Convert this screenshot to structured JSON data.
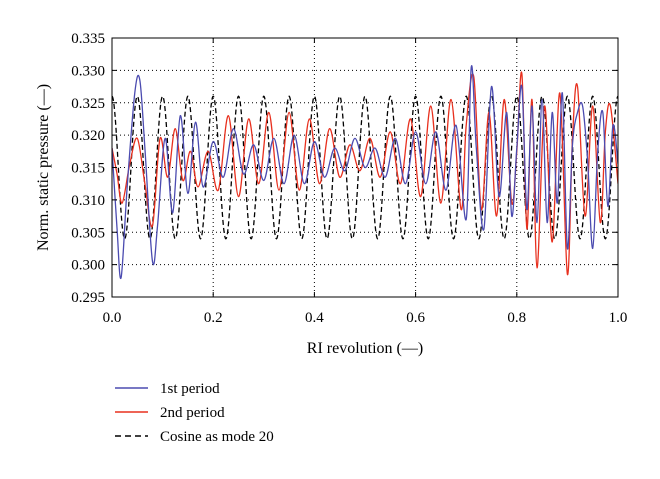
{
  "chart_data": {
    "type": "line",
    "title": "",
    "xlabel": "RI revolution (—)",
    "ylabel": "Norm. static pressure (—)",
    "xlim": [
      0.0,
      1.0
    ],
    "ylim": [
      0.295,
      0.335
    ],
    "xticks": [
      0.0,
      0.2,
      0.4,
      0.6,
      0.8,
      1.0
    ],
    "xtick_labels": [
      "0.0",
      "0.2",
      "0.4",
      "0.6",
      "0.8",
      "1.0"
    ],
    "yticks": [
      0.295,
      0.3,
      0.305,
      0.31,
      0.315,
      0.32,
      0.325,
      0.33,
      0.335
    ],
    "ytick_labels": [
      "0.295",
      "0.300",
      "0.305",
      "0.310",
      "0.315",
      "0.320",
      "0.325",
      "0.330",
      "0.335"
    ],
    "grid": true,
    "grid_style": "dotted",
    "legend_position": "below",
    "series": [
      {
        "name": "1st period",
        "color": "#4b4bb0",
        "style": "solid",
        "x": [
          0.0,
          0.01,
          0.018,
          0.03,
          0.045,
          0.055,
          0.065,
          0.08,
          0.09,
          0.105,
          0.12,
          0.135,
          0.15,
          0.165,
          0.18,
          0.2,
          0.22,
          0.24,
          0.26,
          0.28,
          0.3,
          0.32,
          0.34,
          0.36,
          0.38,
          0.4,
          0.42,
          0.44,
          0.46,
          0.48,
          0.5,
          0.52,
          0.54,
          0.56,
          0.58,
          0.6,
          0.62,
          0.64,
          0.66,
          0.68,
          0.7,
          0.71,
          0.72,
          0.735,
          0.75,
          0.765,
          0.78,
          0.79,
          0.8,
          0.81,
          0.82,
          0.83,
          0.84,
          0.85,
          0.86,
          0.87,
          0.88,
          0.89,
          0.9,
          0.91,
          0.92,
          0.93,
          0.94,
          0.95,
          0.96,
          0.97,
          0.98,
          0.99,
          1.0
        ],
        "y": [
          0.318,
          0.3055,
          0.298,
          0.312,
          0.3265,
          0.3285,
          0.318,
          0.3005,
          0.306,
          0.3195,
          0.308,
          0.323,
          0.311,
          0.322,
          0.312,
          0.319,
          0.3135,
          0.321,
          0.314,
          0.3185,
          0.313,
          0.3195,
          0.3125,
          0.32,
          0.3125,
          0.319,
          0.3135,
          0.318,
          0.3145,
          0.3195,
          0.315,
          0.318,
          0.3135,
          0.3195,
          0.3125,
          0.3205,
          0.3125,
          0.3205,
          0.3115,
          0.3215,
          0.307,
          0.3305,
          0.318,
          0.3055,
          0.3275,
          0.3105,
          0.3235,
          0.3075,
          0.318,
          0.3275,
          0.3085,
          0.3245,
          0.3065,
          0.3255,
          0.3065,
          0.3235,
          0.3095,
          0.3265,
          0.3025,
          0.3185,
          0.3235,
          0.3245,
          0.316,
          0.3025,
          0.3175,
          0.3235,
          0.309,
          0.3215,
          0.3155
        ]
      },
      {
        "name": "2nd period",
        "color": "#e8301e",
        "style": "solid",
        "x": [
          0.0,
          0.01,
          0.02,
          0.035,
          0.05,
          0.065,
          0.08,
          0.095,
          0.11,
          0.125,
          0.14,
          0.155,
          0.17,
          0.19,
          0.21,
          0.23,
          0.25,
          0.27,
          0.29,
          0.31,
          0.33,
          0.35,
          0.37,
          0.39,
          0.41,
          0.43,
          0.45,
          0.47,
          0.49,
          0.51,
          0.53,
          0.55,
          0.57,
          0.59,
          0.61,
          0.63,
          0.65,
          0.67,
          0.69,
          0.7,
          0.715,
          0.73,
          0.745,
          0.76,
          0.775,
          0.79,
          0.8,
          0.81,
          0.82,
          0.83,
          0.84,
          0.855,
          0.87,
          0.885,
          0.9,
          0.91,
          0.92,
          0.935,
          0.95,
          0.965,
          0.975,
          0.985,
          1.0
        ],
        "y": [
          0.318,
          0.314,
          0.3095,
          0.3155,
          0.3195,
          0.3125,
          0.306,
          0.3195,
          0.3135,
          0.321,
          0.313,
          0.3175,
          0.312,
          0.3175,
          0.3115,
          0.323,
          0.3105,
          0.3225,
          0.3125,
          0.3235,
          0.3115,
          0.3235,
          0.3115,
          0.3225,
          0.3125,
          0.321,
          0.3135,
          0.3185,
          0.3145,
          0.3195,
          0.3135,
          0.3205,
          0.3125,
          0.3225,
          0.3105,
          0.3245,
          0.3095,
          0.3255,
          0.3085,
          0.3215,
          0.329,
          0.3085,
          0.3235,
          0.3075,
          0.3255,
          0.3095,
          0.3175,
          0.3295,
          0.3055,
          0.3255,
          0.2995,
          0.3245,
          0.3035,
          0.3265,
          0.2985,
          0.3195,
          0.3275,
          0.3075,
          0.3245,
          0.3065,
          0.3205,
          0.3245,
          0.3125
        ]
      },
      {
        "name": "Cosine as mode 20",
        "color": "#000000",
        "style": "dashed",
        "function": "cosine",
        "mode": 20,
        "center": 0.315,
        "amplitude": 0.011
      }
    ]
  }
}
